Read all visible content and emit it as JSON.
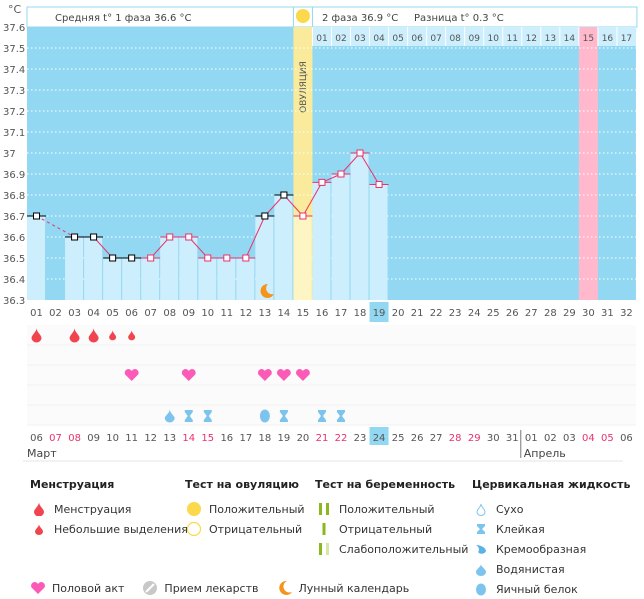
{
  "chart_data": {
    "type": "line",
    "unit_label": "°C",
    "ylim": [
      36.3,
      37.6
    ],
    "yticks": [
      "37.6",
      "37.5",
      "37.4",
      "37.3",
      "37.2",
      "37.1",
      "37",
      "36.9",
      "36.8",
      "36.7",
      "36.6",
      "36.5",
      "36.4",
      "36.3"
    ],
    "cycle_days": [
      "01",
      "02",
      "03",
      "04",
      "05",
      "06",
      "07",
      "08",
      "09",
      "10",
      "11",
      "12",
      "13",
      "14",
      "15",
      "16",
      "17",
      "18",
      "19",
      "20",
      "21",
      "22",
      "23",
      "24",
      "25",
      "26",
      "27",
      "28",
      "29",
      "30",
      "31",
      "32"
    ],
    "temperatures": [
      36.7,
      null,
      36.6,
      36.6,
      36.5,
      36.5,
      36.5,
      36.6,
      36.6,
      36.5,
      36.5,
      36.5,
      36.7,
      36.8,
      36.7,
      36.86,
      36.9,
      37.0,
      36.85,
      null,
      null,
      null,
      null,
      null,
      null,
      null,
      null,
      null,
      null,
      null,
      null,
      null
    ],
    "coverline_days_black": [
      1,
      3,
      4,
      5,
      6,
      13,
      14
    ],
    "dashed_segment": [
      1,
      3
    ],
    "ovulation_day": 15,
    "ovulation_label": "ОВУЛЯЦИЯ",
    "today_cycle_day": 19,
    "phase2_day_labels": [
      "01",
      "02",
      "03",
      "04",
      "05",
      "06",
      "07",
      "08",
      "09",
      "10",
      "11",
      "12",
      "13",
      "14",
      "15",
      "16",
      "17"
    ],
    "phase2_highlight": "15",
    "predicted_period_day": 30,
    "moon_day": 13,
    "colors": {
      "bg": "#93d8f2",
      "bar": "#cdeefc",
      "line": "#e8336b",
      "ovulation": "#f9eb9b",
      "period": "#ffb8cc",
      "today": "#93d8f2"
    }
  },
  "header": {
    "phase1": "Средняя t° 1 фаза 36.6 °C",
    "phase2": "2 фаза 36.9 °C",
    "difference": "Разница t° 0.3 °C"
  },
  "symptoms": {
    "menstruation": [
      {
        "day": 1,
        "size": "big"
      },
      {
        "day": 3,
        "size": "big"
      },
      {
        "day": 4,
        "size": "big"
      },
      {
        "day": 5,
        "size": "small"
      },
      {
        "day": 6,
        "size": "small"
      }
    ],
    "intercourse": [
      6,
      9,
      13,
      14,
      15
    ],
    "cervical": [
      {
        "day": 8,
        "type": "watery"
      },
      {
        "day": 9,
        "type": "sticky"
      },
      {
        "day": 10,
        "type": "sticky"
      },
      {
        "day": 13,
        "type": "egg"
      },
      {
        "day": 14,
        "type": "sticky"
      },
      {
        "day": 16,
        "type": "sticky"
      },
      {
        "day": 17,
        "type": "sticky"
      }
    ]
  },
  "calendar": {
    "dates": [
      "06",
      "07",
      "08",
      "09",
      "10",
      "11",
      "12",
      "13",
      "14",
      "15",
      "16",
      "17",
      "18",
      "19",
      "20",
      "21",
      "22",
      "23",
      "24",
      "25",
      "26",
      "27",
      "28",
      "29",
      "30",
      "31",
      "01",
      "02",
      "03",
      "04",
      "05",
      "06"
    ],
    "weekend": [
      "07",
      "08",
      "14",
      "15",
      "21",
      "22",
      "28",
      "29",
      "04",
      "05"
    ],
    "weekend_idx": [
      1,
      2,
      8,
      9,
      15,
      16,
      22,
      23,
      29,
      30
    ],
    "today_idx": 18,
    "months": [
      {
        "label": "Март",
        "start_idx": 0
      },
      {
        "label": "Апрель",
        "start_idx": 26
      }
    ]
  },
  "legend": {
    "menstruation": {
      "title": "Менструация",
      "items": [
        "Менструация",
        "Небольшие выделения"
      ]
    },
    "ovulation_test": {
      "title": "Тест на овуляцию",
      "items": [
        "Положительный",
        "Отрицательный"
      ]
    },
    "pregnancy_test": {
      "title": "Тест на беременность",
      "items": [
        "Положительный",
        "Отрицательный",
        "Слабоположительный"
      ]
    },
    "cervical": {
      "title": "Цервикальная жидкость",
      "items": [
        "Сухо",
        "Клейкая",
        "Кремообразная",
        "Водянистая",
        "Яичный белок"
      ]
    },
    "other": [
      "Половой акт",
      "Прием лекарств",
      "Лунный календарь"
    ]
  }
}
